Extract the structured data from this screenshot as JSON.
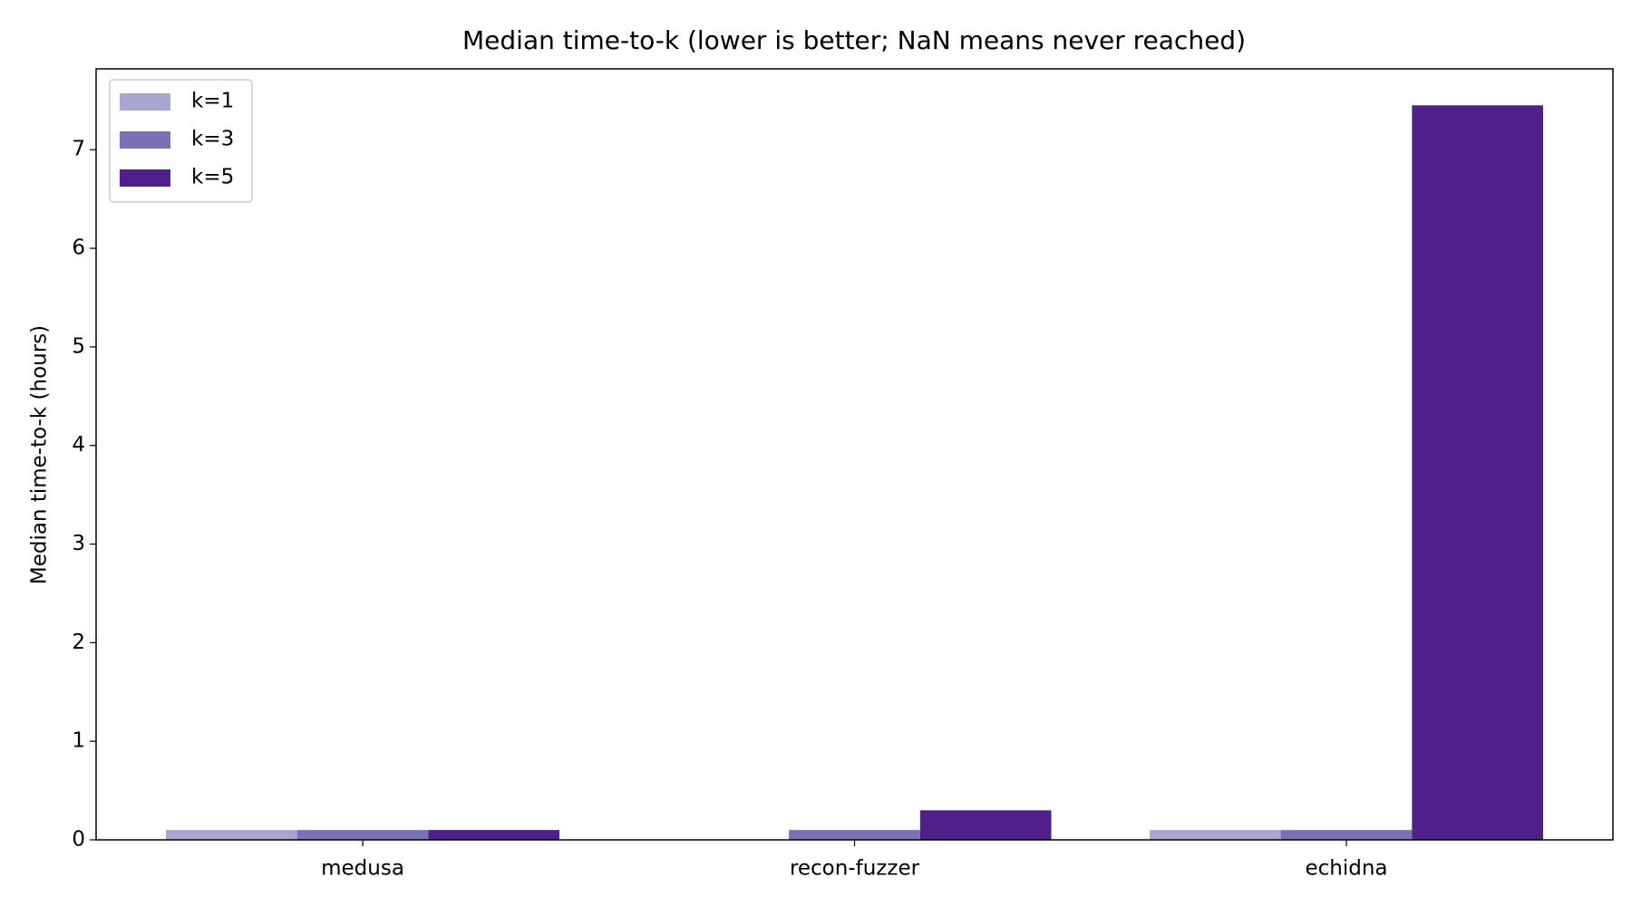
{
  "chart_data": {
    "type": "bar",
    "title": "Median time-to-k (lower is better; NaN means never reached)",
    "y_label": "Median time-to-k (hours)",
    "categories": [
      "medusa",
      "recon-fuzzer",
      "echidna"
    ],
    "series": [
      {
        "name": "k=1",
        "color": "#a9a5d1",
        "values": [
          0.1,
          null,
          0.1
        ]
      },
      {
        "name": "k=3",
        "color": "#7b71b5",
        "values": [
          0.1,
          0.1,
          0.1
        ]
      },
      {
        "name": "k=5",
        "color": "#4f1f8a",
        "values": [
          0.1,
          0.3,
          7.45
        ]
      }
    ],
    "ylim": [
      0,
      7.82
    ],
    "yticks": [
      0,
      1,
      2,
      3,
      4,
      5,
      6,
      7
    ],
    "grid": false,
    "legend": "upper left"
  }
}
